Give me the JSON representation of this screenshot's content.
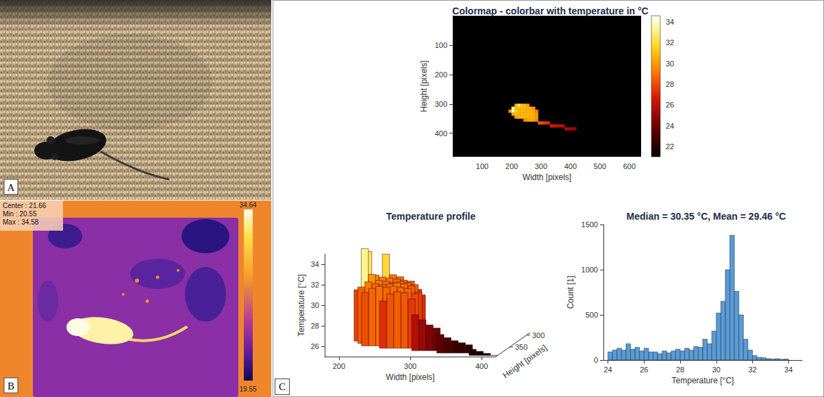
{
  "photo_a": {
    "letter": "A"
  },
  "thermal_b": {
    "letter": "B",
    "overlay": [
      "Center : 21.66",
      "Min : 20.55",
      "Max : 34.58"
    ],
    "colorbar": {
      "range": [
        19.55,
        34.64
      ]
    }
  },
  "panel_c": {
    "letter": "C"
  },
  "chart_data": [
    {
      "type": "heatmap",
      "title": "Colormap - colorbar with temperature in °C",
      "xlabel": "Width [pixels]",
      "ylabel": "Height [pixels]",
      "xlim": [
        0,
        640
      ],
      "xticks": [
        100,
        200,
        300,
        400,
        500,
        600
      ],
      "ylim": [
        480,
        0
      ],
      "yticks": [
        100,
        200,
        300,
        400
      ],
      "grid": false,
      "cell_size": 10,
      "background": 21,
      "cells": [
        [
          215,
          305,
          30.5
        ],
        [
          225,
          305,
          33
        ],
        [
          235,
          305,
          31
        ],
        [
          245,
          305,
          30.8
        ],
        [
          255,
          305,
          30.2
        ],
        [
          205,
          315,
          33.5
        ],
        [
          215,
          315,
          31.2
        ],
        [
          225,
          315,
          31
        ],
        [
          235,
          315,
          30.9
        ],
        [
          245,
          315,
          30.8
        ],
        [
          255,
          315,
          30.7
        ],
        [
          265,
          315,
          30.6
        ],
        [
          275,
          315,
          29.8
        ],
        [
          195,
          325,
          30
        ],
        [
          205,
          325,
          34
        ],
        [
          215,
          325,
          31.5
        ],
        [
          225,
          325,
          30.9
        ],
        [
          235,
          325,
          30.8
        ],
        [
          245,
          325,
          30.7
        ],
        [
          255,
          325,
          30.8
        ],
        [
          265,
          325,
          30.7
        ],
        [
          275,
          325,
          30.5
        ],
        [
          285,
          325,
          29.5
        ],
        [
          205,
          335,
          30.5
        ],
        [
          215,
          335,
          31
        ],
        [
          225,
          335,
          30.8
        ],
        [
          235,
          335,
          30.7
        ],
        [
          245,
          335,
          30.8
        ],
        [
          255,
          335,
          30.9
        ],
        [
          265,
          335,
          30.8
        ],
        [
          275,
          335,
          30.6
        ],
        [
          285,
          335,
          30
        ],
        [
          215,
          345,
          30.2
        ],
        [
          225,
          345,
          30.6
        ],
        [
          235,
          345,
          30.8
        ],
        [
          245,
          345,
          30.7
        ],
        [
          255,
          345,
          30.8
        ],
        [
          265,
          345,
          30.7
        ],
        [
          275,
          345,
          30.6
        ],
        [
          285,
          345,
          30.1
        ],
        [
          245,
          355,
          29.6
        ],
        [
          255,
          355,
          30.3
        ],
        [
          265,
          355,
          30.5
        ],
        [
          275,
          355,
          30.4
        ],
        [
          285,
          355,
          29.8
        ],
        [
          295,
          365,
          28.5
        ],
        [
          305,
          365,
          28
        ],
        [
          315,
          365,
          27.5
        ],
        [
          325,
          365,
          27.2
        ],
        [
          335,
          375,
          26.8
        ],
        [
          345,
          375,
          26.5
        ],
        [
          355,
          375,
          26.2
        ],
        [
          365,
          375,
          26
        ],
        [
          375,
          375,
          25.8
        ],
        [
          385,
          385,
          25.6
        ],
        [
          395,
          385,
          25.4
        ],
        [
          405,
          385,
          25.2
        ],
        [
          415,
          385,
          25
        ]
      ],
      "colorbar": {
        "range": [
          21,
          34.6
        ],
        "ticks": [
          22,
          24,
          26,
          28,
          30,
          32,
          34
        ]
      }
    },
    {
      "type": "surface",
      "title": "Temperature profile",
      "xlabel": "Width [pixels]",
      "ylabel": "Height [pixels]",
      "zlabel": "Temperature [°C]",
      "xlim": [
        180,
        420
      ],
      "xticks": [
        200,
        300,
        400
      ],
      "ylim": [
        290,
        390
      ],
      "yticks": [
        300,
        350
      ],
      "zlim": [
        25,
        35
      ],
      "zticks": [
        26,
        28,
        30,
        32,
        34
      ],
      "grid": false,
      "cell_size": 10,
      "cells": [
        [
          215,
          305,
          30.5
        ],
        [
          225,
          305,
          33
        ],
        [
          235,
          305,
          31
        ],
        [
          245,
          305,
          30.8
        ],
        [
          255,
          305,
          30.2
        ],
        [
          205,
          315,
          33.5
        ],
        [
          215,
          315,
          31.2
        ],
        [
          225,
          315,
          31
        ],
        [
          235,
          315,
          30.9
        ],
        [
          245,
          315,
          30.8
        ],
        [
          255,
          315,
          30.7
        ],
        [
          265,
          315,
          30.6
        ],
        [
          275,
          315,
          29.8
        ],
        [
          195,
          325,
          30
        ],
        [
          205,
          325,
          34
        ],
        [
          215,
          325,
          31.5
        ],
        [
          225,
          325,
          30.9
        ],
        [
          235,
          325,
          30.8
        ],
        [
          245,
          325,
          30.7
        ],
        [
          255,
          325,
          30.8
        ],
        [
          265,
          325,
          30.7
        ],
        [
          275,
          325,
          30.5
        ],
        [
          285,
          325,
          29.5
        ],
        [
          205,
          335,
          30.5
        ],
        [
          215,
          335,
          31
        ],
        [
          225,
          335,
          30.8
        ],
        [
          235,
          335,
          30.7
        ],
        [
          245,
          335,
          30.8
        ],
        [
          255,
          335,
          30.9
        ],
        [
          265,
          335,
          30.8
        ],
        [
          275,
          335,
          30.6
        ],
        [
          285,
          335,
          30
        ],
        [
          215,
          345,
          30.2
        ],
        [
          225,
          345,
          30.6
        ],
        [
          235,
          345,
          30.8
        ],
        [
          245,
          345,
          30.7
        ],
        [
          255,
          345,
          30.8
        ],
        [
          265,
          345,
          30.7
        ],
        [
          275,
          345,
          30.6
        ],
        [
          285,
          345,
          30.1
        ],
        [
          245,
          355,
          29.6
        ],
        [
          255,
          355,
          30.3
        ],
        [
          265,
          355,
          30.5
        ],
        [
          275,
          355,
          30.4
        ],
        [
          285,
          355,
          29.8
        ],
        [
          295,
          365,
          28.5
        ],
        [
          305,
          365,
          28
        ],
        [
          315,
          365,
          27.5
        ],
        [
          325,
          365,
          27.2
        ],
        [
          335,
          375,
          26.8
        ],
        [
          345,
          375,
          26.5
        ],
        [
          355,
          375,
          26.2
        ],
        [
          365,
          375,
          26
        ],
        [
          375,
          375,
          25.8
        ],
        [
          385,
          385,
          25.6
        ],
        [
          395,
          385,
          25.4
        ],
        [
          405,
          385,
          25.2
        ],
        [
          415,
          385,
          25
        ]
      ]
    },
    {
      "type": "histogram",
      "title": "Median = 30.35 °C, Mean = 29.46 °C",
      "xlabel": "Temperature [°C]",
      "ylabel": "Count [1]",
      "bins": [
        24,
        24.25,
        24.5,
        24.75,
        25,
        25.25,
        25.5,
        25.75,
        26,
        26.25,
        26.5,
        26.75,
        27,
        27.25,
        27.5,
        27.75,
        28,
        28.25,
        28.5,
        28.75,
        29,
        29.25,
        29.5,
        29.75,
        30,
        30.25,
        30.5,
        30.75,
        31,
        31.25,
        31.5,
        31.75,
        32,
        32.25,
        32.5,
        32.75,
        33,
        33.25,
        33.5,
        33.75,
        34
      ],
      "counts": [
        90,
        110,
        130,
        110,
        180,
        120,
        140,
        100,
        130,
        90,
        90,
        70,
        100,
        80,
        100,
        120,
        100,
        130,
        110,
        150,
        140,
        230,
        180,
        320,
        520,
        650,
        1000,
        1380,
        760,
        500,
        230,
        110,
        50,
        30,
        25,
        15,
        10,
        15,
        8,
        10
      ],
      "xlim": [
        23.75,
        34.75
      ],
      "xticks": [
        24,
        26,
        28,
        30,
        32,
        34
      ],
      "ylim": [
        0,
        1500
      ],
      "yticks": [
        0,
        500,
        1000,
        1500
      ],
      "color": "#5b9bd5",
      "grid": false
    }
  ]
}
